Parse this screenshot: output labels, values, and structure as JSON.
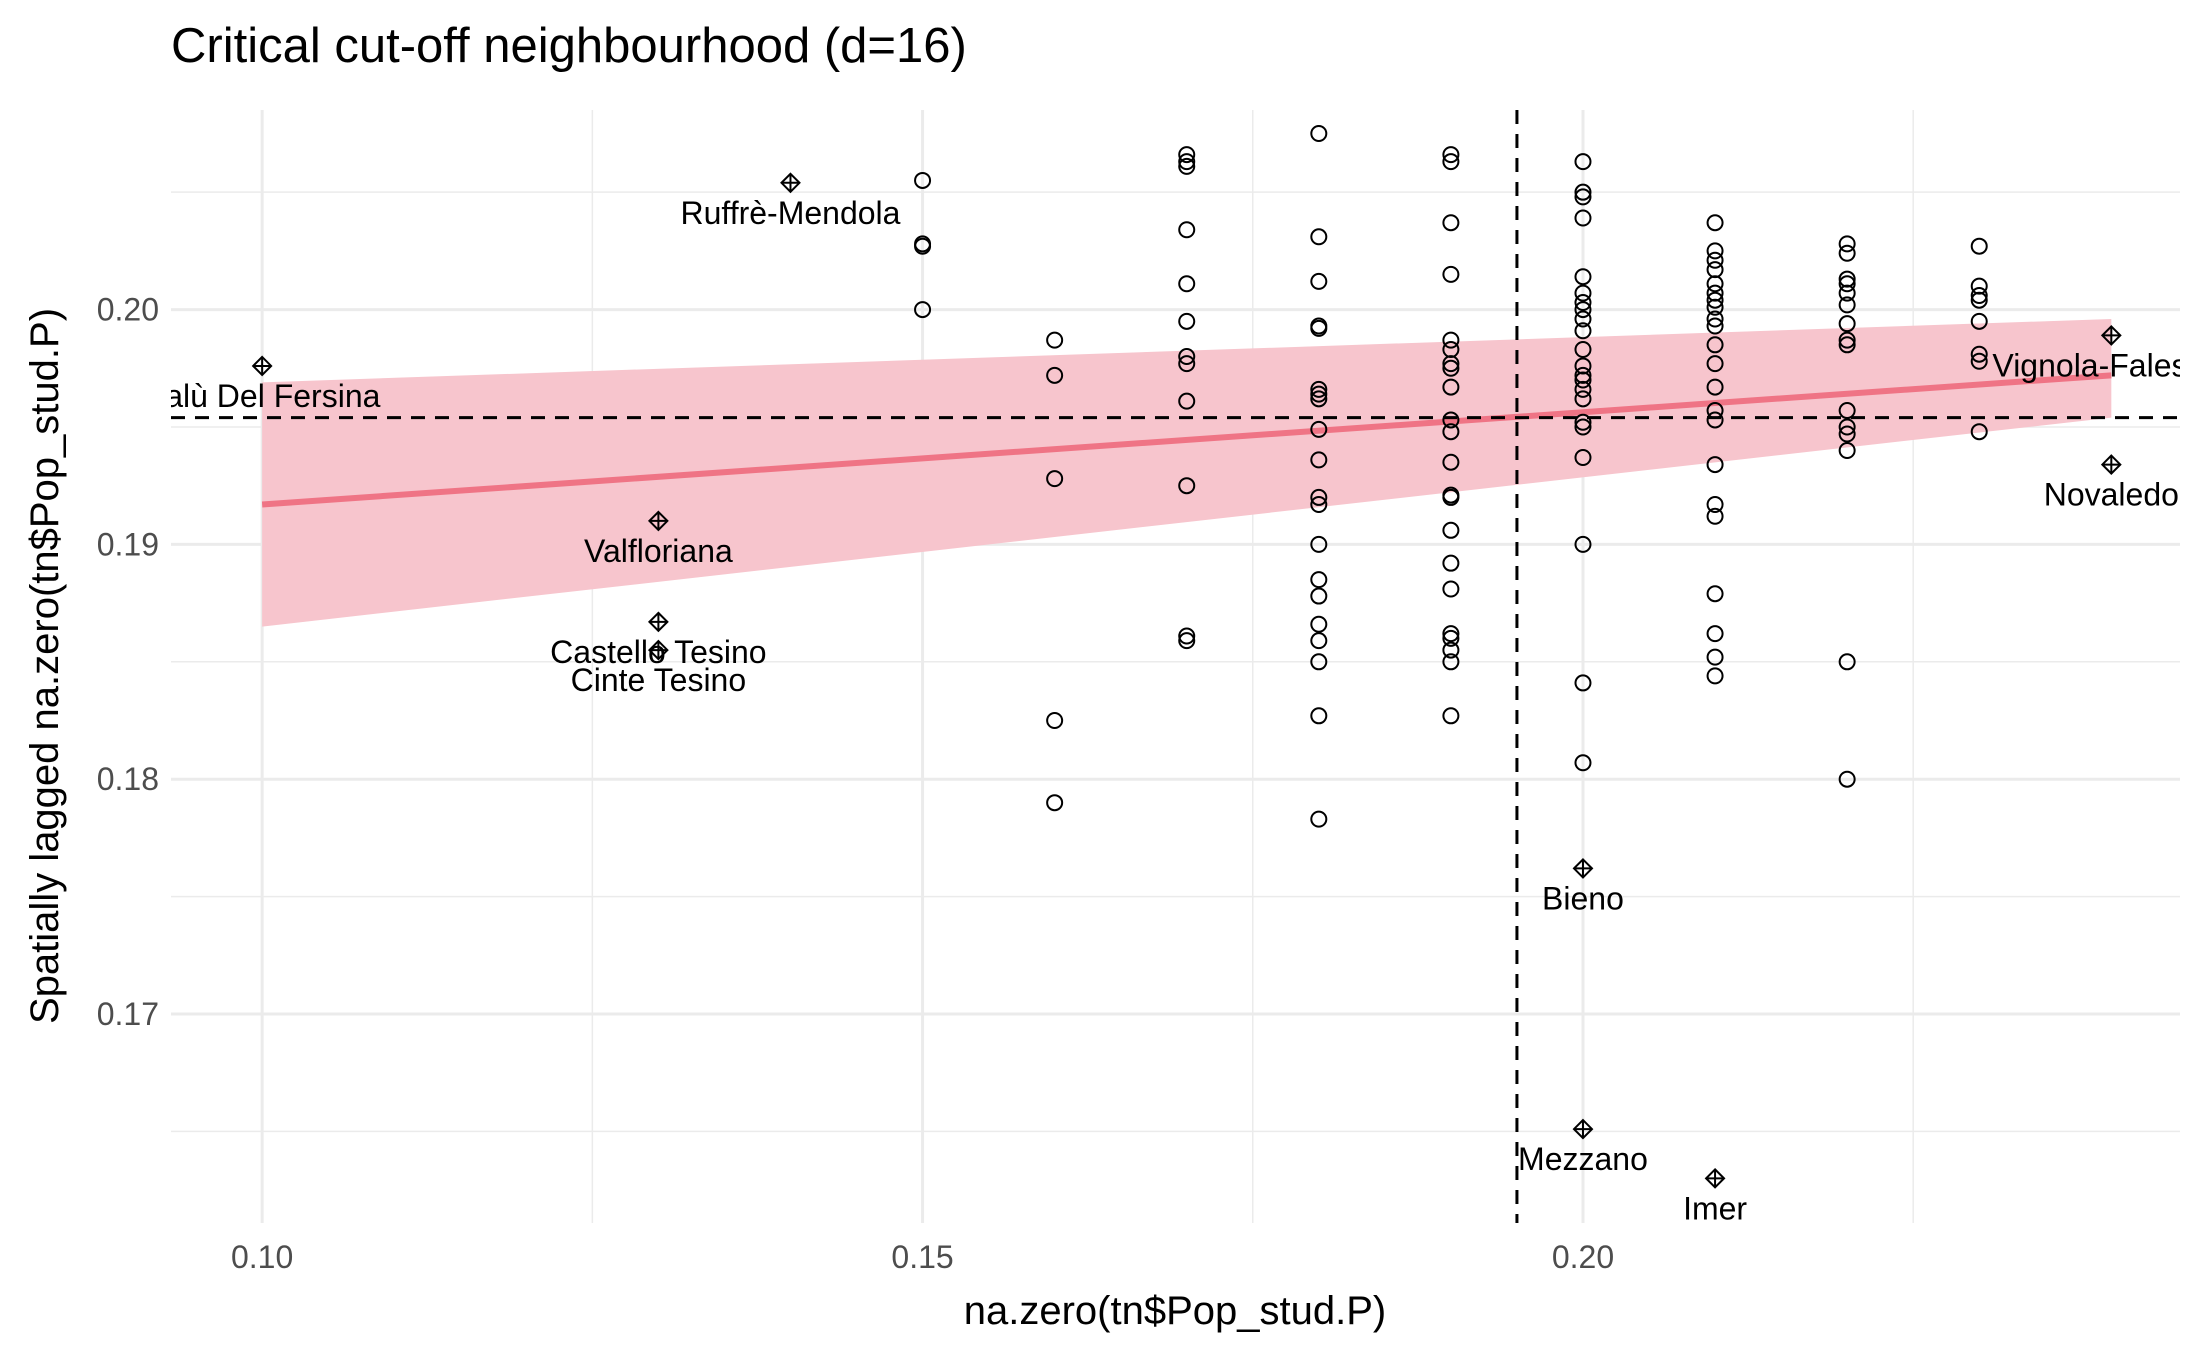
{
  "chart_data": {
    "type": "scatter",
    "title": "Critical cut-off neighbourhood (d=16)",
    "xlabel": "na.zero(tn$Pop_stud.P)",
    "ylabel": "Spatially lagged na.zero(tn$Pop_stud.P)",
    "xlim": [
      0.0931,
      0.2452
    ],
    "ylim": [
      0.1611,
      0.2085
    ],
    "x_ticks": [
      {
        "value": 0.1,
        "label": "0.10"
      },
      {
        "value": 0.15,
        "label": "0.15"
      },
      {
        "value": 0.2,
        "label": "0.20"
      }
    ],
    "y_ticks": [
      {
        "value": 0.17,
        "label": "0.17"
      },
      {
        "value": 0.18,
        "label": "0.18"
      },
      {
        "value": 0.19,
        "label": "0.19"
      },
      {
        "value": 0.2,
        "label": "0.20"
      }
    ],
    "grid": true,
    "colors": {
      "fit_line": "#ef7485",
      "confidence_band": "#f7c5cd",
      "points": "#000000",
      "gridlines": "#ebebeb"
    },
    "mean_reference_lines": {
      "x": 0.195,
      "y": 0.1954,
      "style": "dashed"
    },
    "regression": {
      "x_range": [
        0.1,
        0.24
      ],
      "line": [
        0.1917,
        0.1972
      ],
      "band_lower": [
        0.1865,
        0.1954
      ],
      "band_upper": [
        0.1969,
        0.1996
      ]
    },
    "points": [
      {
        "x": 0.15,
        "y": 0.2055
      },
      {
        "x": 0.15,
        "y": 0.2028
      },
      {
        "x": 0.15,
        "y": 0.2027
      },
      {
        "x": 0.15,
        "y": 0.2
      },
      {
        "x": 0.16,
        "y": 0.1987
      },
      {
        "x": 0.16,
        "y": 0.1972
      },
      {
        "x": 0.16,
        "y": 0.1928
      },
      {
        "x": 0.16,
        "y": 0.1825
      },
      {
        "x": 0.16,
        "y": 0.179
      },
      {
        "x": 0.17,
        "y": 0.2066
      },
      {
        "x": 0.17,
        "y": 0.2063
      },
      {
        "x": 0.17,
        "y": 0.2061
      },
      {
        "x": 0.17,
        "y": 0.2034
      },
      {
        "x": 0.17,
        "y": 0.2011
      },
      {
        "x": 0.17,
        "y": 0.1995
      },
      {
        "x": 0.17,
        "y": 0.198
      },
      {
        "x": 0.17,
        "y": 0.1977
      },
      {
        "x": 0.17,
        "y": 0.1961
      },
      {
        "x": 0.17,
        "y": 0.1925
      },
      {
        "x": 0.17,
        "y": 0.1861
      },
      {
        "x": 0.17,
        "y": 0.1859
      },
      {
        "x": 0.18,
        "y": 0.2075
      },
      {
        "x": 0.18,
        "y": 0.2031
      },
      {
        "x": 0.18,
        "y": 0.2012
      },
      {
        "x": 0.18,
        "y": 0.1993
      },
      {
        "x": 0.18,
        "y": 0.1992
      },
      {
        "x": 0.18,
        "y": 0.1966
      },
      {
        "x": 0.18,
        "y": 0.1964
      },
      {
        "x": 0.18,
        "y": 0.1962
      },
      {
        "x": 0.18,
        "y": 0.1949
      },
      {
        "x": 0.18,
        "y": 0.1936
      },
      {
        "x": 0.18,
        "y": 0.192
      },
      {
        "x": 0.18,
        "y": 0.1917
      },
      {
        "x": 0.18,
        "y": 0.19
      },
      {
        "x": 0.18,
        "y": 0.1885
      },
      {
        "x": 0.18,
        "y": 0.1878
      },
      {
        "x": 0.18,
        "y": 0.1866
      },
      {
        "x": 0.18,
        "y": 0.1859
      },
      {
        "x": 0.18,
        "y": 0.185
      },
      {
        "x": 0.18,
        "y": 0.1827
      },
      {
        "x": 0.18,
        "y": 0.1783
      },
      {
        "x": 0.19,
        "y": 0.2066
      },
      {
        "x": 0.19,
        "y": 0.2063
      },
      {
        "x": 0.19,
        "y": 0.2037
      },
      {
        "x": 0.19,
        "y": 0.2015
      },
      {
        "x": 0.19,
        "y": 0.1987
      },
      {
        "x": 0.19,
        "y": 0.1983
      },
      {
        "x": 0.19,
        "y": 0.1977
      },
      {
        "x": 0.19,
        "y": 0.1975
      },
      {
        "x": 0.19,
        "y": 0.1967
      },
      {
        "x": 0.19,
        "y": 0.1953
      },
      {
        "x": 0.19,
        "y": 0.1948
      },
      {
        "x": 0.19,
        "y": 0.1935
      },
      {
        "x": 0.19,
        "y": 0.1921
      },
      {
        "x": 0.19,
        "y": 0.192
      },
      {
        "x": 0.19,
        "y": 0.1906
      },
      {
        "x": 0.19,
        "y": 0.1892
      },
      {
        "x": 0.19,
        "y": 0.1881
      },
      {
        "x": 0.19,
        "y": 0.1862
      },
      {
        "x": 0.19,
        "y": 0.186
      },
      {
        "x": 0.19,
        "y": 0.1855
      },
      {
        "x": 0.19,
        "y": 0.185
      },
      {
        "x": 0.19,
        "y": 0.1827
      },
      {
        "x": 0.2,
        "y": 0.2063
      },
      {
        "x": 0.2,
        "y": 0.205
      },
      {
        "x": 0.2,
        "y": 0.2048
      },
      {
        "x": 0.2,
        "y": 0.2039
      },
      {
        "x": 0.2,
        "y": 0.2014
      },
      {
        "x": 0.2,
        "y": 0.2007
      },
      {
        "x": 0.2,
        "y": 0.2003
      },
      {
        "x": 0.2,
        "y": 0.2
      },
      {
        "x": 0.2,
        "y": 0.1996
      },
      {
        "x": 0.2,
        "y": 0.1991
      },
      {
        "x": 0.2,
        "y": 0.1983
      },
      {
        "x": 0.2,
        "y": 0.1976
      },
      {
        "x": 0.2,
        "y": 0.1972
      },
      {
        "x": 0.2,
        "y": 0.197
      },
      {
        "x": 0.2,
        "y": 0.1966
      },
      {
        "x": 0.2,
        "y": 0.1962
      },
      {
        "x": 0.2,
        "y": 0.1952
      },
      {
        "x": 0.2,
        "y": 0.195
      },
      {
        "x": 0.2,
        "y": 0.1937
      },
      {
        "x": 0.2,
        "y": 0.19
      },
      {
        "x": 0.2,
        "y": 0.1841
      },
      {
        "x": 0.2,
        "y": 0.1807
      },
      {
        "x": 0.21,
        "y": 0.2037
      },
      {
        "x": 0.21,
        "y": 0.2025
      },
      {
        "x": 0.21,
        "y": 0.2021
      },
      {
        "x": 0.21,
        "y": 0.2017
      },
      {
        "x": 0.21,
        "y": 0.2011
      },
      {
        "x": 0.21,
        "y": 0.2007
      },
      {
        "x": 0.21,
        "y": 0.2004
      },
      {
        "x": 0.21,
        "y": 0.2001
      },
      {
        "x": 0.21,
        "y": 0.1996
      },
      {
        "x": 0.21,
        "y": 0.1993
      },
      {
        "x": 0.21,
        "y": 0.1985
      },
      {
        "x": 0.21,
        "y": 0.1977
      },
      {
        "x": 0.21,
        "y": 0.1967
      },
      {
        "x": 0.21,
        "y": 0.1957
      },
      {
        "x": 0.21,
        "y": 0.1953
      },
      {
        "x": 0.21,
        "y": 0.1934
      },
      {
        "x": 0.21,
        "y": 0.1917
      },
      {
        "x": 0.21,
        "y": 0.1912
      },
      {
        "x": 0.21,
        "y": 0.1879
      },
      {
        "x": 0.21,
        "y": 0.1862
      },
      {
        "x": 0.21,
        "y": 0.1852
      },
      {
        "x": 0.21,
        "y": 0.1844
      },
      {
        "x": 0.22,
        "y": 0.2028
      },
      {
        "x": 0.22,
        "y": 0.2024
      },
      {
        "x": 0.22,
        "y": 0.2013
      },
      {
        "x": 0.22,
        "y": 0.2011
      },
      {
        "x": 0.22,
        "y": 0.2007
      },
      {
        "x": 0.22,
        "y": 0.2002
      },
      {
        "x": 0.22,
        "y": 0.1994
      },
      {
        "x": 0.22,
        "y": 0.1987
      },
      {
        "x": 0.22,
        "y": 0.1985
      },
      {
        "x": 0.22,
        "y": 0.1957
      },
      {
        "x": 0.22,
        "y": 0.195
      },
      {
        "x": 0.22,
        "y": 0.1947
      },
      {
        "x": 0.22,
        "y": 0.194
      },
      {
        "x": 0.22,
        "y": 0.185
      },
      {
        "x": 0.22,
        "y": 0.18
      },
      {
        "x": 0.23,
        "y": 0.2027
      },
      {
        "x": 0.23,
        "y": 0.201
      },
      {
        "x": 0.23,
        "y": 0.2006
      },
      {
        "x": 0.23,
        "y": 0.2004
      },
      {
        "x": 0.23,
        "y": 0.1995
      },
      {
        "x": 0.23,
        "y": 0.1981
      },
      {
        "x": 0.23,
        "y": 0.1978
      },
      {
        "x": 0.23,
        "y": 0.1948
      }
    ],
    "influential_points": [
      {
        "label": "Palù Del Fersina",
        "x": 0.1,
        "y": 0.1976
      },
      {
        "label": "Ruffrè-Mendola",
        "x": 0.14,
        "y": 0.2054
      },
      {
        "label": "Valfloriana",
        "x": 0.13,
        "y": 0.191
      },
      {
        "label": "Castello Tesino",
        "x": 0.13,
        "y": 0.1867
      },
      {
        "label": "Cinte Tesino",
        "x": 0.13,
        "y": 0.1855
      },
      {
        "label": "Vignola-Falesina",
        "x": 0.24,
        "y": 0.1989
      },
      {
        "label": "Novaledo",
        "x": 0.24,
        "y": 0.1934
      },
      {
        "label": "Bieno",
        "x": 0.2,
        "y": 0.1762
      },
      {
        "label": "Mezzano",
        "x": 0.2,
        "y": 0.1651
      },
      {
        "label": "Imer",
        "x": 0.21,
        "y": 0.163
      }
    ]
  }
}
